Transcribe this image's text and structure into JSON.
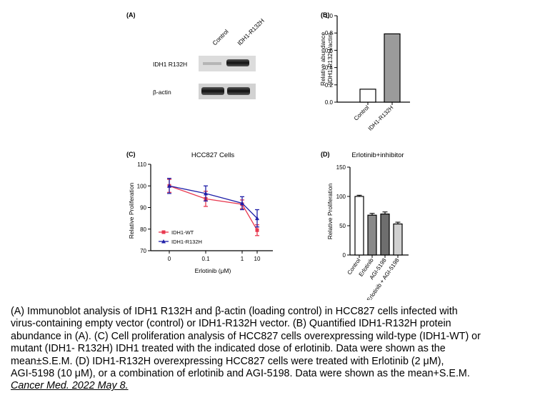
{
  "panelA": {
    "label": "(A)",
    "lane_labels": [
      "Control",
      "IDH1-R132H"
    ],
    "row_labels": [
      "IDH1 R132H",
      "β-actin"
    ]
  },
  "chart_data": [
    {
      "id": "B",
      "panel_label": "(B)",
      "type": "bar",
      "title": "",
      "categories": [
        "Control",
        "IDH1-R132H"
      ],
      "values": [
        0.15,
        0.79
      ],
      "colors": [
        "#ffffff",
        "#9b9b9b"
      ],
      "ylabel": "Relative abundance\n(IDH1-R132H/actin)",
      "ylim": [
        0,
        1.0
      ],
      "yticks": [
        "0.0",
        "0.2",
        "0.4",
        "0.6",
        "0.8",
        "1.0"
      ]
    },
    {
      "id": "C",
      "panel_label": "(C)",
      "type": "line",
      "title": "HCC827 Cells",
      "xlabel": "Erlotinib (μM)",
      "ylabel": "Relative Proliferation",
      "categories": [
        "0",
        "0.1",
        "1",
        "10"
      ],
      "ylim": [
        70,
        110
      ],
      "yticks": [
        "70",
        "80",
        "90",
        "100",
        "110"
      ],
      "legend": "lower-left",
      "series": [
        {
          "name": "IDH1-WT",
          "color": "#e8384f",
          "marker": "square",
          "values": [
            100,
            94,
            91.5,
            79.5
          ],
          "errors": [
            3,
            3.5,
            2,
            2.5
          ]
        },
        {
          "name": "IDH1-R132H",
          "color": "#1f1fa8",
          "marker": "triangle",
          "values": [
            100,
            96.5,
            92,
            85
          ],
          "errors": [
            3.5,
            3.5,
            3,
            4
          ]
        }
      ]
    },
    {
      "id": "D",
      "panel_label": "(D)",
      "type": "bar",
      "title": "Erlotinib+inhibitor",
      "ylabel": "Relative Proliferation",
      "categories": [
        "Control",
        "Erlotinib",
        "AGI-5198",
        "Erlotinib + AGI-5198"
      ],
      "values": [
        100,
        68,
        70,
        53
      ],
      "errors": [
        2,
        3,
        3.5,
        3
      ],
      "colors": [
        "#ffffff",
        "#8a8a8a",
        "#6e6e6e",
        "#d0d0d0"
      ],
      "ylim": [
        0,
        150
      ],
      "yticks": [
        "0",
        "50",
        "100",
        "150"
      ]
    }
  ],
  "caption": {
    "lines": [
      "(A) Immunoblot analysis of IDH1 R132H and β-actin (loading control) in HCC827 cells infected with",
      "virus-containing empty vector (control) or IDH1-R132H vector. (B) Quantified IDH1-R132H protein",
      "abundance in (A). (C) Cell proliferation analysis of HCC827 cells overexpressing wild-type (IDH1-WT) or",
      "mutant (IDH1- R132H) IDH1 treated with the indicated dose of erlotinib. Data were shown as the",
      "mean±S.E.M. (D) IDH1-R132H overexpressing HCC827 cells were treated with Erlotinib (2 μM),",
      "AGI-5198 (10 μM), or a combination of erlotinib and AGI-5198. Data were shown as the mean+S.E.M."
    ],
    "citation": "Cancer Med. 2022 May 8."
  }
}
